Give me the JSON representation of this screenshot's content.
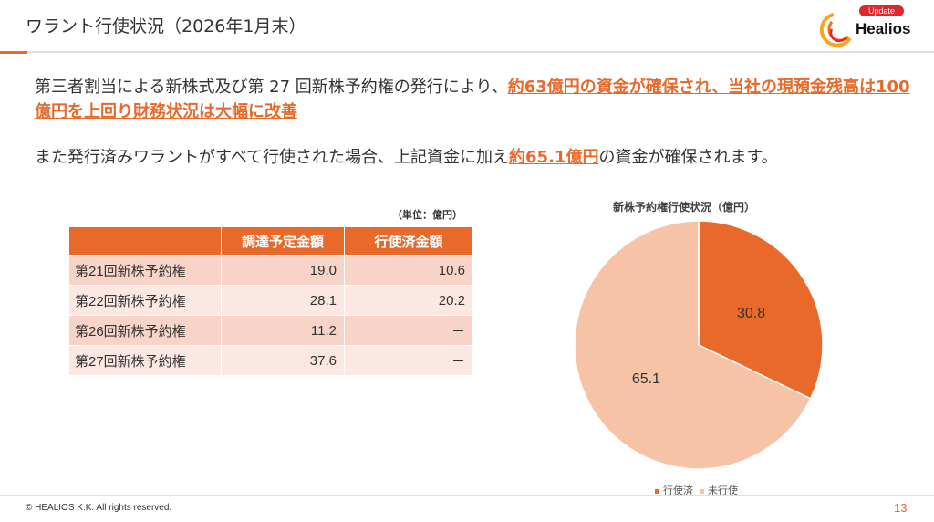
{
  "header": {
    "title": "ワラント行使状況（2026年1月末）",
    "badge": "Update",
    "logo": "Healios"
  },
  "body": {
    "p1_a": "第三者割当による新株式及び第 27 回新株予約権の発行により、",
    "p1_b": "約63億円の資金が確保され、当社の現預金残高は100億円を上回り財務状況は大幅に改善",
    "p2_a": "また発行済みワラントがすべて行使された場合、上記資金に加え",
    "p2_b": "約65.1億円",
    "p2_c": "の資金が確保されます。"
  },
  "table": {
    "unit": "（単位：億円）",
    "headers": [
      "",
      "調達予定金額",
      "行使済金額"
    ],
    "rows": [
      [
        "第21回新株予約権",
        "19.0",
        "10.6"
      ],
      [
        "第22回新株予約権",
        "28.1",
        "20.2"
      ],
      [
        "第26回新株予約権",
        "11.2",
        "－"
      ],
      [
        "第27回新株予約権",
        "37.6",
        "－"
      ]
    ]
  },
  "chart_data": {
    "type": "pie",
    "title": "新株予約権行使状況（億円）",
    "labels": [
      "行使済",
      "未行使"
    ],
    "values": [
      30.8,
      65.1
    ],
    "colors": [
      "#e8692a",
      "#f6c3a6"
    ],
    "legend": "bottom"
  },
  "footer": {
    "copyright": "© HEALIOS K.K. All rights reserved.",
    "page": "13"
  }
}
